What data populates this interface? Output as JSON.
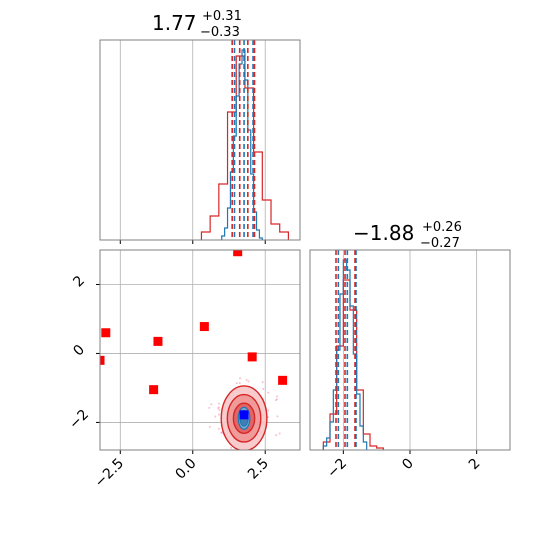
{
  "chart_data": {
    "type": "corner",
    "parameters": [
      {
        "panel": "top-left",
        "title_value": "1.77",
        "title_plus": "+0.31",
        "title_minus": "−0.33",
        "xlim": [
          -3.2,
          3.7
        ],
        "ticks": [
          -2.5,
          0.0,
          2.5
        ],
        "tick_labels": [
          "−2.5",
          "0.0",
          "2.5"
        ],
        "quantiles_blue": [
          1.44,
          1.77,
          2.08
        ],
        "quantiles_red": [
          1.36,
          1.62,
          1.9,
          2.13
        ],
        "hist_blue": {
          "bins": [
            1.0,
            1.1,
            1.2,
            1.3,
            1.4,
            1.5,
            1.6,
            1.7,
            1.8,
            1.9,
            2.0,
            2.1,
            2.2,
            2.3,
            2.4
          ],
          "counts": [
            0.02,
            0.06,
            0.16,
            0.34,
            0.52,
            0.72,
            0.88,
            0.95,
            0.8,
            0.55,
            0.33,
            0.14,
            0.05,
            0.01
          ]
        },
        "hist_red": {
          "bins": [
            0.3,
            0.6,
            0.9,
            1.2,
            1.5,
            1.8,
            2.1,
            2.4,
            2.7,
            3.0,
            3.3
          ],
          "counts": [
            0.01,
            0.03,
            0.07,
            0.16,
            0.23,
            0.19,
            0.11,
            0.05,
            0.02,
            0.01
          ]
        }
      },
      {
        "panel": "bottom-right",
        "title_value": "−1.88",
        "title_plus": "+0.26",
        "title_minus": "−0.27",
        "xlim": [
          -3.0,
          3.0
        ],
        "ticks": [
          -2,
          0,
          2
        ],
        "tick_labels": [
          "−2",
          "0",
          "2"
        ],
        "quantiles_blue": [
          -2.15,
          -1.88,
          -1.62
        ],
        "quantiles_red": [
          -2.22,
          -1.95,
          -1.65
        ],
        "hist_blue": {
          "bins": [
            -2.6,
            -2.5,
            -2.4,
            -2.3,
            -2.2,
            -2.1,
            -2.0,
            -1.9,
            -1.8,
            -1.7,
            -1.6,
            -1.5,
            -1.4,
            -1.3
          ],
          "counts": [
            0.02,
            0.06,
            0.14,
            0.3,
            0.5,
            0.78,
            0.95,
            0.9,
            0.72,
            0.48,
            0.28,
            0.12,
            0.04
          ]
        },
        "hist_red": {
          "bins": [
            -2.6,
            -2.4,
            -2.2,
            -2.0,
            -1.8,
            -1.6,
            -1.4,
            -1.2,
            -1.0,
            -0.8
          ],
          "counts": [
            0.04,
            0.18,
            0.52,
            0.85,
            0.7,
            0.3,
            0.08,
            0.02,
            0.01
          ]
        }
      }
    ],
    "scatter_panel": {
      "panel": "bottom-left",
      "xlim": [
        -3.2,
        3.7
      ],
      "ylim": [
        -2.8,
        3.0
      ],
      "xticks": [
        -2.5,
        0.0,
        2.5
      ],
      "xtick_labels": [
        "−2.5",
        "0.0",
        "2.5"
      ],
      "yticks": [
        2,
        0,
        -2
      ],
      "ytick_labels": [
        "2",
        "0",
        "−2"
      ],
      "red_squares": [
        [
          -3.0,
          0.6
        ],
        [
          -3.2,
          -0.2
        ],
        [
          -1.2,
          0.35
        ],
        [
          -1.35,
          -1.05
        ],
        [
          0.4,
          0.78
        ],
        [
          1.55,
          2.95
        ],
        [
          2.05,
          -0.1
        ],
        [
          3.1,
          -0.78
        ]
      ],
      "blue_square": [
        1.77,
        -1.78
      ],
      "contour_center": [
        1.77,
        -1.88
      ],
      "contour_levels_red_sigma": [
        0.35,
        0.55,
        0.75
      ],
      "contour_levels_blue_sigma": [
        0.14,
        0.2
      ]
    },
    "colors": {
      "blue": "#1f77b4",
      "red": "#d62728",
      "square_red": "#ff0000",
      "square_blue": "#0000ff",
      "grid": "#b0b0b0",
      "frame": "#808080"
    },
    "grid": true
  }
}
